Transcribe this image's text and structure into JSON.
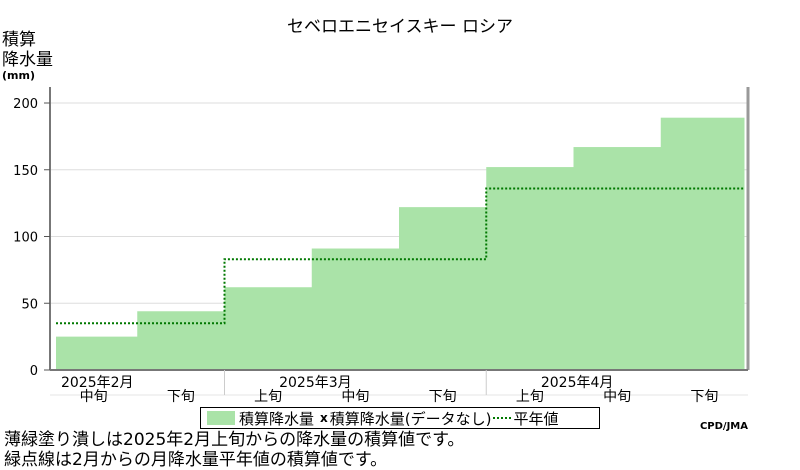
{
  "chart_data": {
    "type": "bar",
    "title": "セベロエニセイスキー ロシア",
    "ylabel_line1": "積算",
    "ylabel_line2": "降水量",
    "ylabel_unit": "(mm)",
    "ylim": [
      0,
      200
    ],
    "yticks": [
      0,
      50,
      100,
      150,
      200
    ],
    "grid": true,
    "categories": [
      "中旬",
      "下旬",
      "上旬",
      "中旬",
      "下旬",
      "上旬",
      "中旬",
      "下旬"
    ],
    "month_labels": [
      {
        "label": "2025年2月",
        "start_index": 0,
        "span": 2
      },
      {
        "label": "2025年3月",
        "start_index": 2,
        "span": 3
      },
      {
        "label": "2025年4月",
        "start_index": 5,
        "span": 3
      }
    ],
    "series": [
      {
        "name": "積算降水量",
        "kind": "step-fill",
        "color": "#aae3a8",
        "values": [
          25,
          44,
          62,
          91,
          122,
          152,
          167,
          189
        ]
      },
      {
        "name": "平年値",
        "kind": "step-dotted",
        "color": "#007800",
        "values": [
          35,
          35,
          83,
          83,
          83,
          136,
          136,
          136
        ]
      }
    ]
  },
  "legend": {
    "item1": "積算降水量",
    "item2_mark": "x",
    "item2": "積算降水量(データなし)",
    "item3": "平年値"
  },
  "credit": "CPD/JMA",
  "notes": [
    "薄緑塗り潰しは2025年2月上旬からの降水量の積算値です。",
    "緑点線は2月からの月降水量平年値の積算値です。"
  ]
}
